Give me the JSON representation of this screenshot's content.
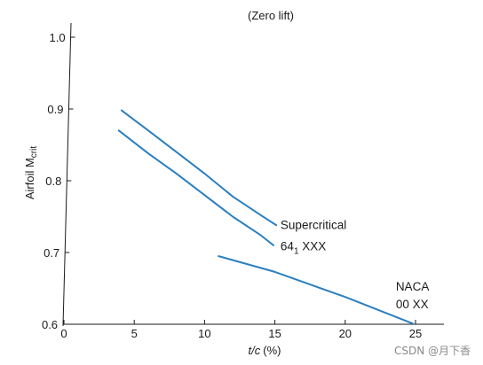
{
  "chart_data": {
    "type": "line",
    "title": "(Zero lift)",
    "xlabel_base": "t/c",
    "xlabel_unit": "(%)",
    "ylabel_base": "Airfoil M",
    "ylabel_sub": "crit",
    "xlim": [
      0,
      28
    ],
    "ylim": [
      0.6,
      1.02
    ],
    "x_ticks": [
      0,
      5,
      10,
      15,
      20,
      25
    ],
    "y_ticks": [
      0.6,
      0.7,
      0.8,
      0.9,
      1.0
    ],
    "y_tick_labels": [
      "0.6",
      "0.7",
      "0.8",
      "0.9",
      "1.0"
    ],
    "line_color": "#2a7fbf",
    "series": [
      {
        "x": [
          4.1,
          6,
          8,
          10,
          12,
          14,
          15.1
        ],
        "y": [
          0.898,
          0.87,
          0.84,
          0.81,
          0.778,
          0.752,
          0.738
        ]
      },
      {
        "x": [
          3.9,
          6,
          8,
          10,
          12,
          14,
          14.9
        ],
        "y": [
          0.87,
          0.838,
          0.81,
          0.78,
          0.75,
          0.724,
          0.71
        ]
      },
      {
        "x": [
          11,
          15,
          20,
          24.8
        ],
        "y": [
          0.695,
          0.673,
          0.638,
          0.601
        ]
      }
    ],
    "annotations": [
      {
        "text": "Supercritical",
        "x": 15.4,
        "y": 0.733
      },
      {
        "text_base": "64",
        "text_sub": "1",
        "text_rest": " XXX",
        "x": 15.4,
        "y": 0.703
      },
      {
        "text": "NACA",
        "x": 23.6,
        "y": 0.647
      },
      {
        "text": "00 XX",
        "x": 23.6,
        "y": 0.622
      }
    ]
  },
  "watermark": "CSDN @月下香"
}
